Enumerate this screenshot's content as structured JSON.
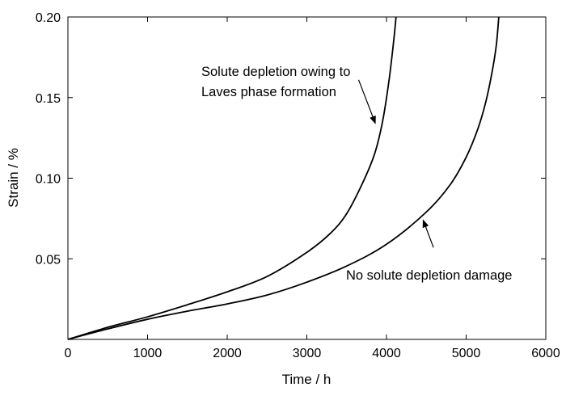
{
  "chart_data": {
    "type": "line",
    "xlabel": "Time / h",
    "ylabel": "Strain / %",
    "xlim": [
      0,
      6000
    ],
    "ylim": [
      0,
      0.2
    ],
    "x_ticks": [
      0,
      1000,
      2000,
      3000,
      4000,
      5000,
      6000
    ],
    "x_tick_labels": [
      "0",
      "1000",
      "2000",
      "3000",
      "4000",
      "5000",
      "6000"
    ],
    "y_ticks": [
      0.05,
      0.1,
      0.15,
      0.2
    ],
    "y_tick_labels": [
      "0.05",
      "0.10",
      "0.15",
      "0.20"
    ],
    "grid": false,
    "legend": "none",
    "series": [
      {
        "x": [
          0,
          500,
          1000,
          1500,
          2000,
          2500,
          3000,
          3300,
          3500,
          3700,
          3850,
          3950,
          4030,
          4090,
          4120
        ],
        "y": [
          0,
          0.0075,
          0.014,
          0.0215,
          0.0295,
          0.039,
          0.054,
          0.066,
          0.078,
          0.097,
          0.115,
          0.135,
          0.16,
          0.185,
          0.2
        ],
        "color": "#000000"
      },
      {
        "x": [
          0,
          500,
          1000,
          1500,
          2000,
          2500,
          3000,
          3500,
          4000,
          4500,
          4800,
          5000,
          5150,
          5250,
          5330,
          5380,
          5410
        ],
        "y": [
          0,
          0.0065,
          0.0125,
          0.0175,
          0.022,
          0.0275,
          0.0355,
          0.0455,
          0.059,
          0.079,
          0.096,
          0.113,
          0.131,
          0.148,
          0.167,
          0.183,
          0.2
        ],
        "color": "#000000"
      }
    ],
    "annotations": [
      {
        "lines": [
          "Solute depletion owing to",
          "Laves phase formation"
        ],
        "arrow_from": [
          3650,
          0.161
        ],
        "arrow_to": [
          3860,
          0.134
        ]
      },
      {
        "lines": [
          "No solute depletion damage"
        ],
        "arrow_from": [
          4590,
          0.057
        ],
        "arrow_to": [
          4460,
          0.074
        ]
      }
    ]
  }
}
